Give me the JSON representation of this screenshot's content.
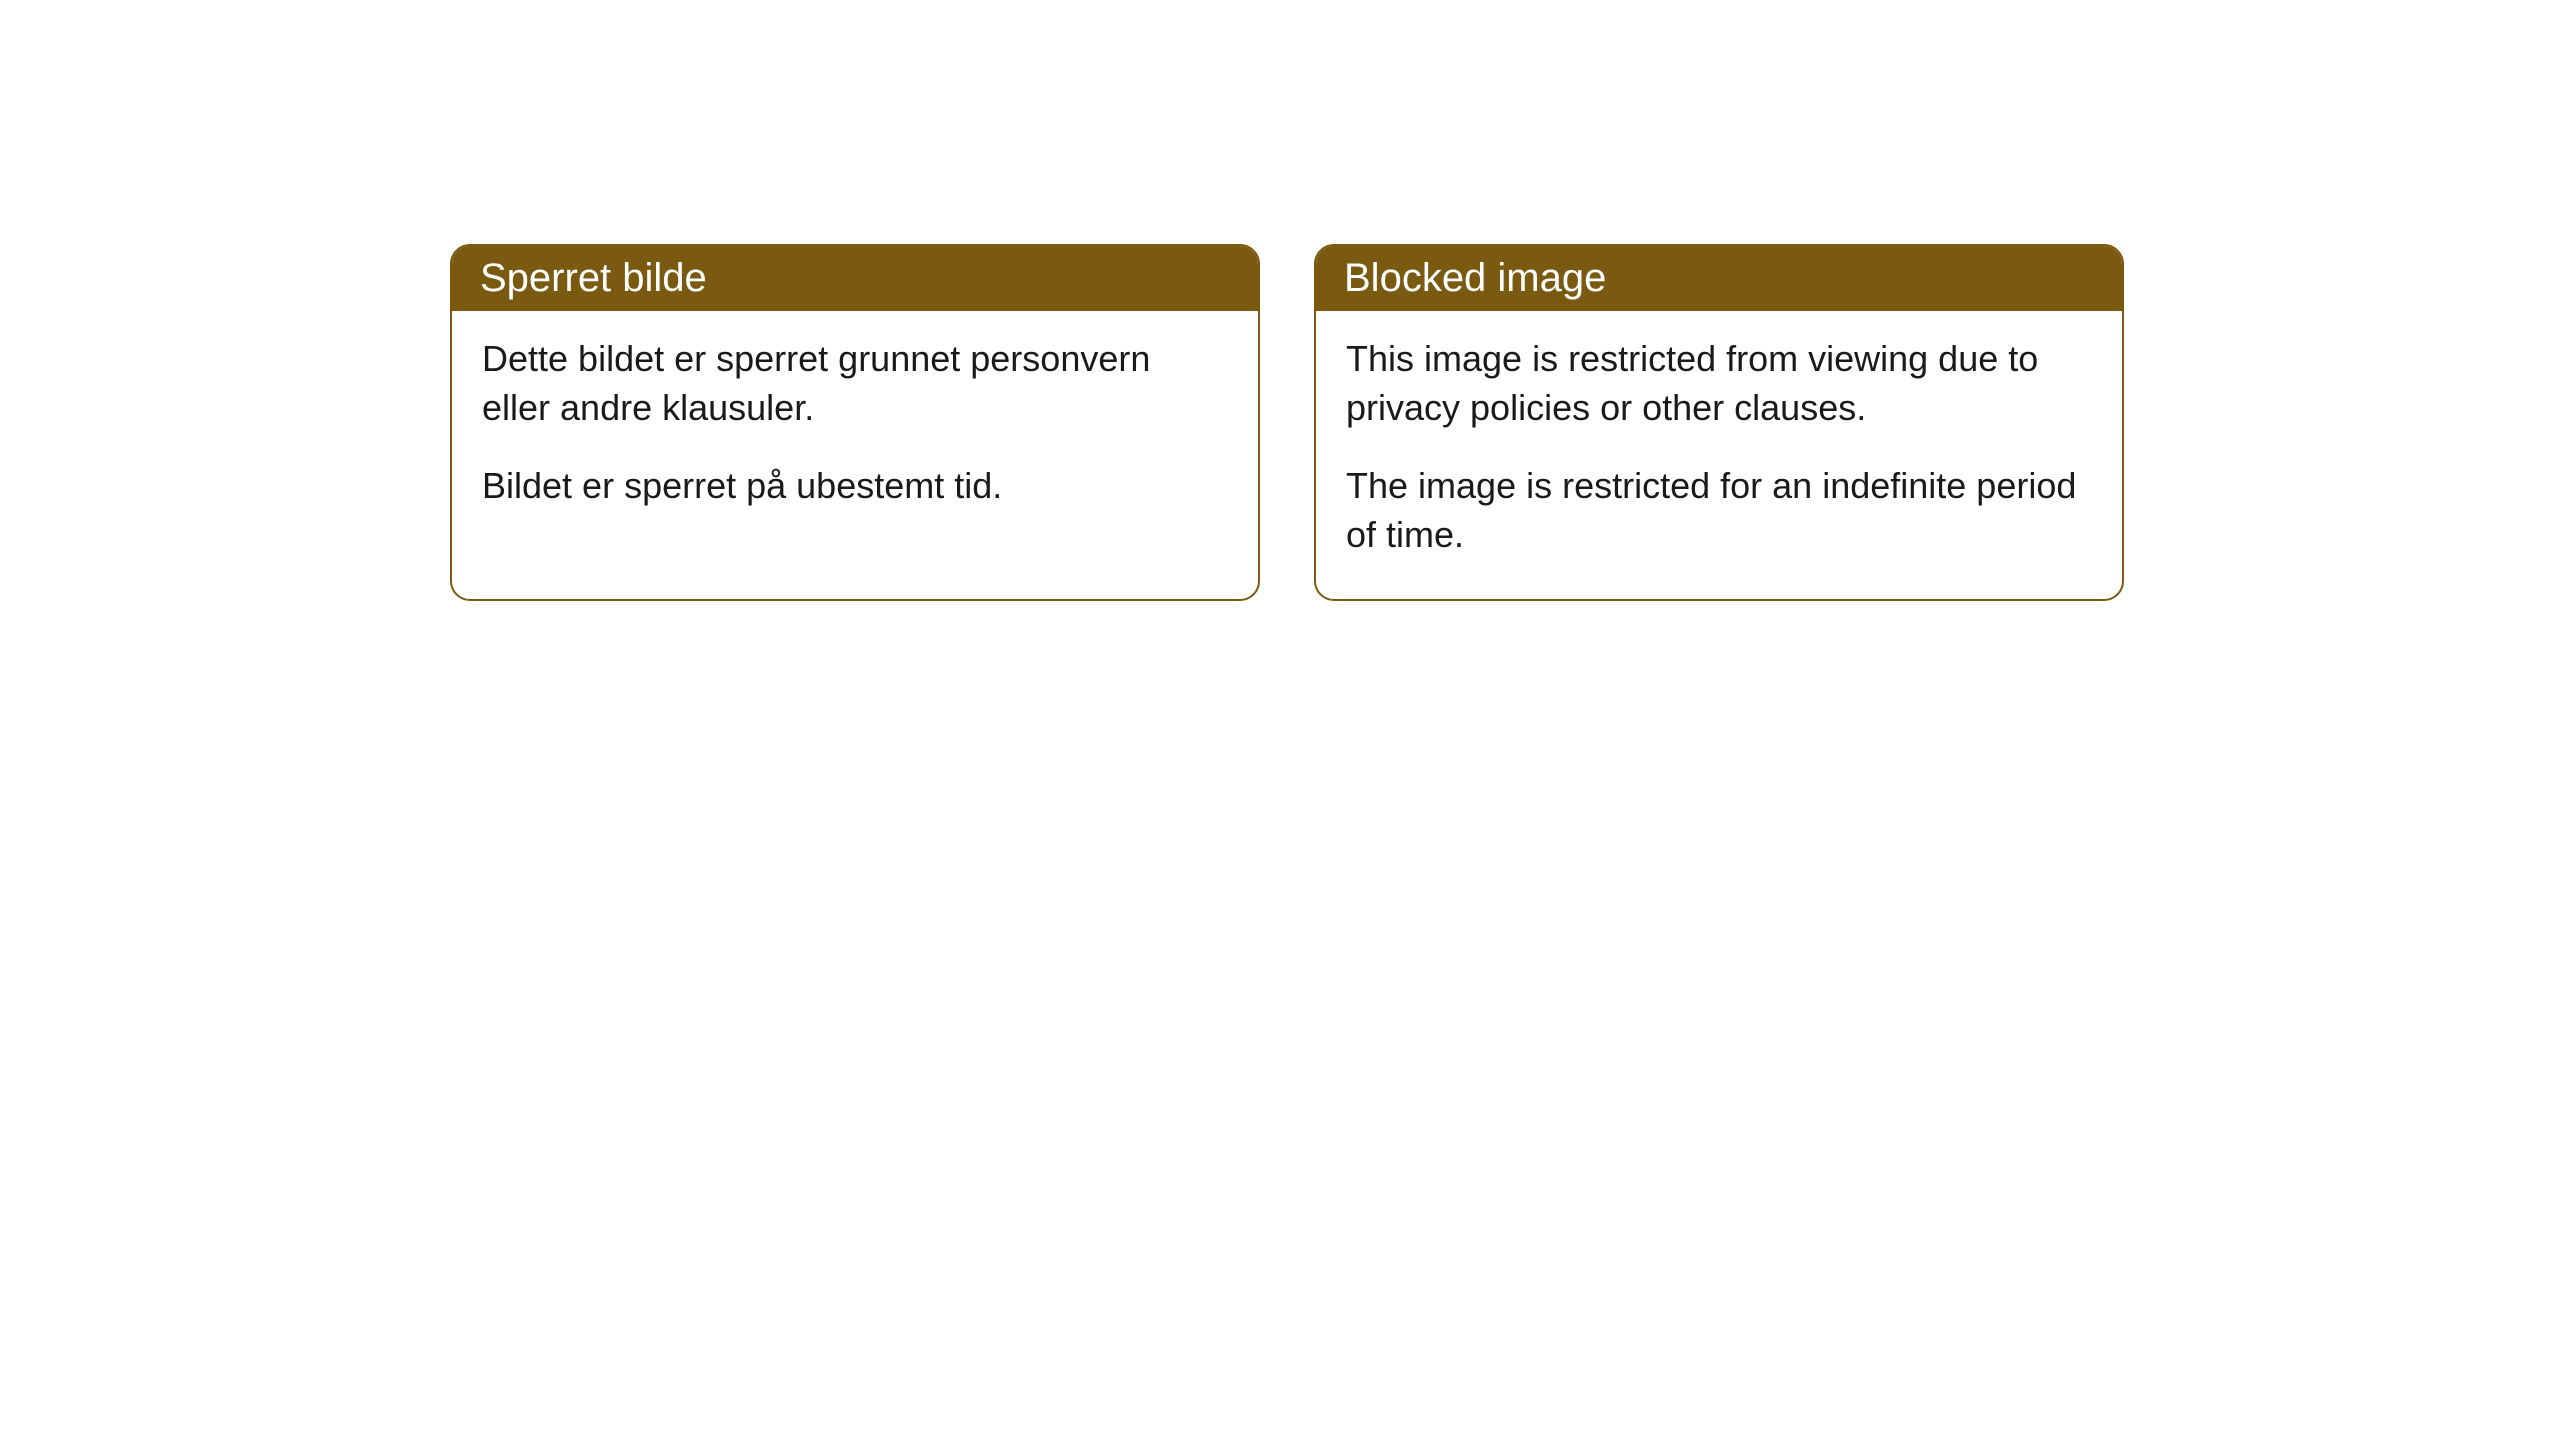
{
  "cards": [
    {
      "title": "Sperret bilde",
      "paragraph1": "Dette bildet er sperret grunnet personvern eller andre klausuler.",
      "paragraph2": "Bildet er sperret på ubestemt tid."
    },
    {
      "title": "Blocked image",
      "paragraph1": "This image is restricted from viewing due to privacy policies or other clauses.",
      "paragraph2": "The image is restricted for an indefinite period of time."
    }
  ],
  "styling": {
    "header_background_color": "#7a5a10",
    "header_text_color": "#ffffff",
    "card_border_color": "#7a5a10",
    "card_background_color": "#ffffff",
    "body_text_color": "#1a1a1a",
    "page_background_color": "#ffffff",
    "header_font_size": 40,
    "body_font_size": 36,
    "border_radius": 20,
    "border_width": 2
  }
}
